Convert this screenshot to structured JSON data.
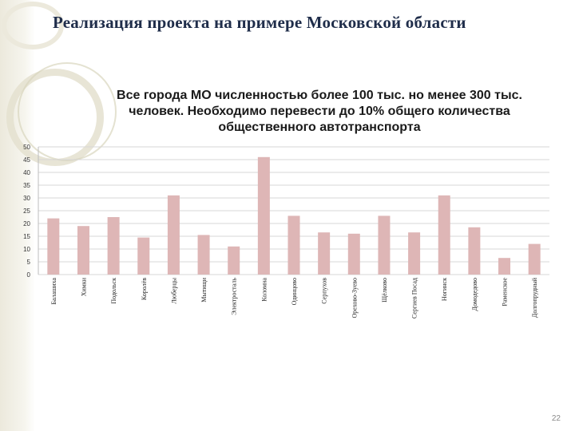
{
  "slide": {
    "title": "Реализация проекта на примере Московской области",
    "page_number": "22"
  },
  "colors": {
    "bar": "#deb6b6",
    "grid": "#d7d7d7",
    "title": "#1f2d4a",
    "accent_band": "#ece9dc"
  },
  "chart_data": {
    "type": "bar",
    "title": "Все города МО численностью более 100 тыс. но менее 300 тыс. человек. Необходимо перевести до 10% общего количества общественного автотранспорта",
    "xlabel": "",
    "ylabel": "",
    "ylim": [
      0,
      50
    ],
    "y_ticks": [
      0,
      5,
      10,
      15,
      20,
      25,
      30,
      35,
      40,
      45,
      50
    ],
    "grid": true,
    "legend": "none",
    "categories": [
      "Балашиха",
      "Химки",
      "Подольск",
      "Королёв",
      "Люберцы",
      "Мытищи",
      "Электросталь",
      "Коломна",
      "Одинцово",
      "Серпухов",
      "Орехово-Зуево",
      "Щёлково",
      "Сергиев Посад",
      "Ногинск",
      "Домодедово",
      "Раменское",
      "Долгопрудный"
    ],
    "values": [
      22,
      19,
      22.5,
      14.5,
      31,
      15.5,
      11,
      46,
      23,
      16.5,
      16,
      23,
      16.5,
      31,
      18.5,
      6.5,
      12
    ]
  }
}
